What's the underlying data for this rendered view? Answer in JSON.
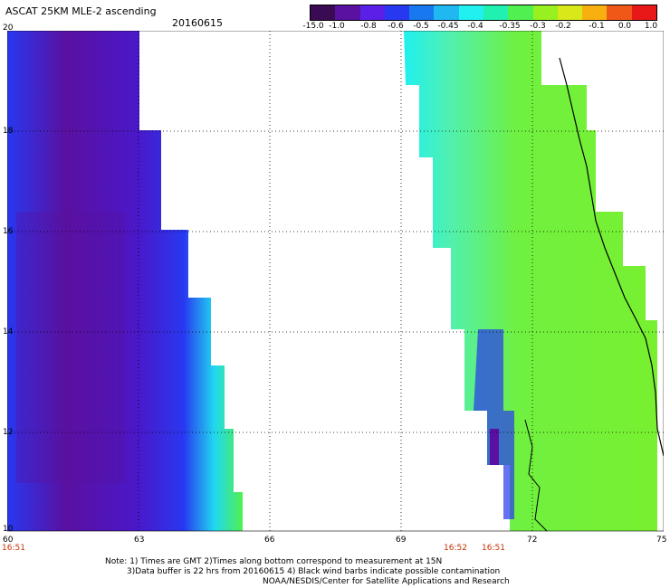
{
  "header": {
    "title": "ASCAT 25KM MLE-2 ascending",
    "date": "20160615"
  },
  "colorbar": {
    "labels": [
      "-15.0",
      "-1.0",
      "-0.8",
      "-0.6",
      "-0.5",
      "-0.45",
      "-0.4",
      "-0.35",
      "-0.3",
      "-0.2",
      "-0.1",
      "0.0",
      "1.0"
    ],
    "colors": [
      "#3a0a52",
      "#5a10a0",
      "#5a20e8",
      "#2838f0",
      "#1878f0",
      "#20b8f0",
      "#20f0f0",
      "#20f0b0",
      "#50f050",
      "#98f020",
      "#d8e818",
      "#f8b010",
      "#f05818",
      "#e81818"
    ]
  },
  "axes": {
    "x_ticks": [
      "60",
      "63",
      "66",
      "69",
      "72",
      "75"
    ],
    "y_ticks": [
      "20",
      "18",
      "16",
      "14",
      "12",
      "10"
    ]
  },
  "pass_times": [
    "16:51",
    "16:52",
    "16:51"
  ],
  "notes": [
    "Note: 1) Times are GMT 2)Times along bottom correspond to measurement at 15N",
    "3)Data buffer is 22 hrs from 20160615 4) Black wind barbs indicate possible contamination",
    "NOAA/NESDIS/Center for Satellite Applications and Research"
  ]
}
